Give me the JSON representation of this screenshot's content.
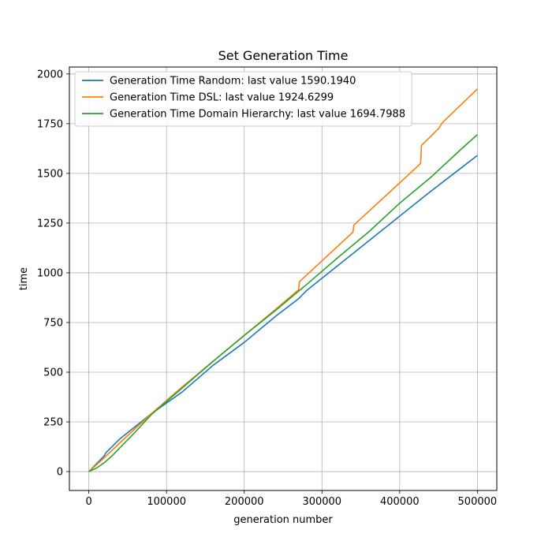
{
  "chart_data": {
    "type": "line",
    "title": "Set Generation Time",
    "xlabel": "generation number",
    "ylabel": "time",
    "xlim": [
      -25000,
      525000
    ],
    "ylim": [
      -95,
      2035
    ],
    "xticks": [
      0,
      100000,
      200000,
      300000,
      400000,
      500000
    ],
    "yticks": [
      0,
      250,
      500,
      750,
      1000,
      1250,
      1500,
      1750,
      2000
    ],
    "grid": true,
    "legend_position": "top-left",
    "series": [
      {
        "name": "Generation Time Random: last value 1590.1940",
        "color": "#1f77b4",
        "x": [
          0,
          20000,
          22000,
          40000,
          80000,
          120000,
          160000,
          200000,
          240000,
          270000,
          280000,
          320000,
          360000,
          400000,
          440000,
          480000,
          500000
        ],
        "y": [
          0,
          80,
          95,
          165,
          290,
          400,
          535,
          650,
          780,
          870,
          910,
          1035,
          1160,
          1285,
          1410,
          1530,
          1590.194
        ]
      },
      {
        "name": "Generation Time DSL: last value 1924.6299",
        "color": "#ff7f0e",
        "x": [
          0,
          20000,
          40000,
          80000,
          120000,
          160000,
          200000,
          240000,
          270000,
          271000,
          300000,
          340000,
          341000,
          380000,
          427000,
          428000,
          450000,
          455000,
          500000
        ],
        "y": [
          0,
          70,
          145,
          290,
          425,
          555,
          685,
          815,
          915,
          955,
          1060,
          1205,
          1240,
          1380,
          1550,
          1640,
          1725,
          1755,
          1924.6299
        ]
      },
      {
        "name": "Generation Time Domain Hierarchy: last value 1694.7988",
        "color": "#2ca02c",
        "x": [
          0,
          10000,
          20000,
          30000,
          40000,
          60000,
          80000,
          120000,
          160000,
          200000,
          240000,
          280000,
          320000,
          360000,
          400000,
          440000,
          480000,
          500000
        ],
        "y": [
          0,
          18,
          45,
          80,
          120,
          200,
          285,
          420,
          555,
          685,
          810,
          940,
          1075,
          1205,
          1350,
          1480,
          1625,
          1694.7988
        ]
      }
    ]
  }
}
